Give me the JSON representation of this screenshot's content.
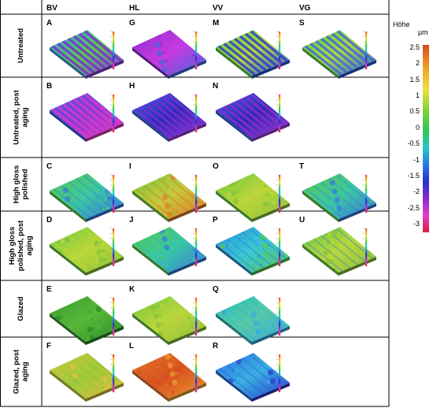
{
  "columns": [
    "BV",
    "HL",
    "VV",
    "VG"
  ],
  "rows": [
    "Untreated",
    "Untreated, post aging",
    "High gloss polished",
    "High gloss polished, post aging",
    "Glazed",
    "Glazed, post aging"
  ],
  "panels": [
    {
      "id": "A",
      "row": 0,
      "col": 0,
      "scheme": "stripes-purple-green",
      "stripe": "#7a2ad8"
    },
    {
      "id": "G",
      "row": 0,
      "col": 1,
      "scheme": "mottled-purple",
      "stripe": "#b03ae0"
    },
    {
      "id": "M",
      "row": 0,
      "col": 2,
      "scheme": "stripes-green-blue",
      "stripe": "#2e3ad0"
    },
    {
      "id": "S",
      "row": 0,
      "col": 3,
      "scheme": "stripes-green-blue",
      "stripe": "#3a6ae0"
    },
    {
      "id": "B",
      "row": 1,
      "col": 0,
      "scheme": "stripes-blue-magenta",
      "stripe": "#d83ac8"
    },
    {
      "id": "H",
      "row": 1,
      "col": 1,
      "scheme": "stripes-blue-purple",
      "stripe": "#7a2ad8"
    },
    {
      "id": "N",
      "row": 1,
      "col": 2,
      "scheme": "stripes-blue-purple",
      "stripe": "#8a2ad0"
    },
    {
      "id": "C",
      "row": 2,
      "col": 0,
      "scheme": "green-blue-patches",
      "stripe": "#3a78e0"
    },
    {
      "id": "I",
      "row": 2,
      "col": 1,
      "scheme": "green-orange",
      "stripe": "#d8702a"
    },
    {
      "id": "O",
      "row": 2,
      "col": 2,
      "scheme": "green-yellow",
      "stripe": "#d8c03a"
    },
    {
      "id": "T",
      "row": 2,
      "col": 3,
      "scheme": "green-blue-patches",
      "stripe": "#3a78e0"
    },
    {
      "id": "D",
      "row": 3,
      "col": 0,
      "scheme": "green-yellow",
      "stripe": "#c8d83a"
    },
    {
      "id": "J",
      "row": 3,
      "col": 1,
      "scheme": "green-blue-patches",
      "stripe": "#2ab0d0"
    },
    {
      "id": "P",
      "row": 3,
      "col": 2,
      "scheme": "blue-cyan",
      "stripe": "#2a78e8"
    },
    {
      "id": "U",
      "row": 3,
      "col": 3,
      "scheme": "green-yellow",
      "stripe": "#3a78e0"
    },
    {
      "id": "E",
      "row": 4,
      "col": 0,
      "scheme": "green-dark",
      "stripe": "#48b030"
    },
    {
      "id": "K",
      "row": 4,
      "col": 1,
      "scheme": "green-yellow",
      "stripe": "#d8c03a"
    },
    {
      "id": "Q",
      "row": 4,
      "col": 2,
      "scheme": "cyan-green",
      "stripe": "#2ac0b0"
    },
    {
      "id": "F",
      "row": 5,
      "col": 0,
      "scheme": "yellow-green",
      "stripe": "#e0c83a"
    },
    {
      "id": "L",
      "row": 5,
      "col": 1,
      "scheme": "orange-red",
      "stripe": "#e06a20"
    },
    {
      "id": "R",
      "row": 5,
      "col": 2,
      "scheme": "blue-cyan-stripes",
      "stripe": "#2a60e0"
    }
  ],
  "schemes": {
    "stripes-purple-green": [
      "#3a9ae8",
      "#58d048",
      "#8a3ad8"
    ],
    "mottled-purple": [
      "#8a2ad0",
      "#c83ae0",
      "#3a6ae0"
    ],
    "stripes-green-blue": [
      "#58d048",
      "#b8d83a",
      "#2a5ae0"
    ],
    "stripes-blue-magenta": [
      "#3a5ae8",
      "#8a3ad8",
      "#e03ac0"
    ],
    "stripes-blue-purple": [
      "#3a6ae0",
      "#2a2ab0",
      "#a03ad8"
    ],
    "green-blue-patches": [
      "#58c848",
      "#3ac8a0",
      "#3a78e0"
    ],
    "green-orange": [
      "#70c840",
      "#c8c83a",
      "#e07a2a"
    ],
    "green-yellow": [
      "#68c840",
      "#b8d83a",
      "#88c03a"
    ],
    "blue-cyan": [
      "#2a90e0",
      "#3ac8d0",
      "#58c848"
    ],
    "green-dark": [
      "#3a9a30",
      "#58b838",
      "#2a8828"
    ],
    "cyan-green": [
      "#2ac0c0",
      "#58c8a8",
      "#3aa8e0"
    ],
    "yellow-green": [
      "#c8c83a",
      "#98c83a",
      "#e0c040"
    ],
    "orange-red": [
      "#e0782a",
      "#d85020",
      "#e8a030"
    ],
    "blue-cyan-stripes": [
      "#2a70e0",
      "#3ab0e0",
      "#2a3ad0"
    ]
  },
  "legend": {
    "title": "Höhe",
    "unit": "µm",
    "ticks": [
      "2.5",
      "2",
      "1.5",
      "1",
      "0.5",
      "0",
      "-0.5",
      "-1",
      "-1.5",
      "-2",
      "-2.5",
      "-3"
    ],
    "colors": [
      "#d84a1e",
      "#f0a02a",
      "#e8e23a",
      "#78d03a",
      "#2ec85a",
      "#22c8c8",
      "#2a78e8",
      "#2430d0",
      "#8a2ad0",
      "#e83ac8",
      "#d81e3a"
    ]
  }
}
